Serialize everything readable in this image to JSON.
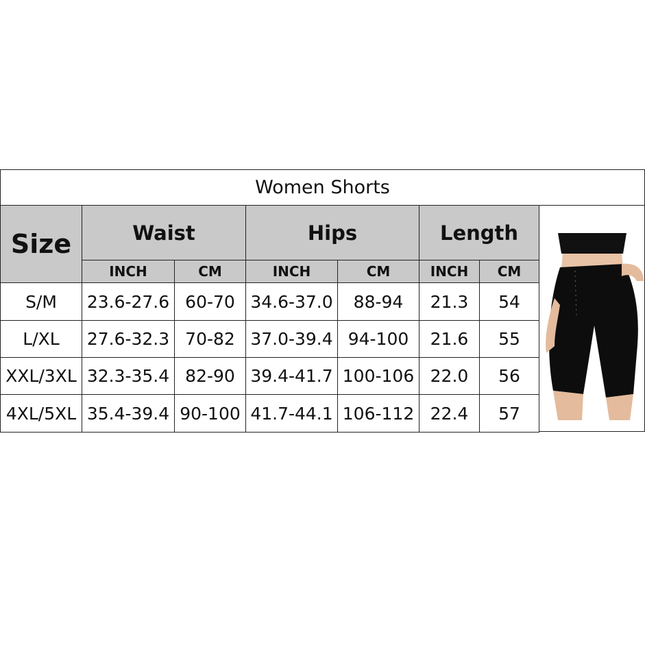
{
  "title": "Women Shorts",
  "headers": {
    "size": "Size",
    "waist": "Waist",
    "hips": "Hips",
    "length": "Length"
  },
  "units": [
    "INCH",
    "CM",
    "INCH",
    "CM",
    "INCH",
    "CM"
  ],
  "rows": [
    [
      "S/M",
      "23.6-27.6",
      "60-70",
      "34.6-37.0",
      "88-94",
      "21.3",
      "54"
    ],
    [
      "L/XL",
      "27.6-32.3",
      "70-82",
      "37.0-39.4",
      "94-100",
      "21.6",
      "55"
    ],
    [
      "XXL/3XL",
      "32.3-35.4",
      "82-90",
      "39.4-41.7",
      "100-106",
      "22.0",
      "56"
    ],
    [
      "4XL/5XL",
      "35.4-39.4",
      "90-100",
      "41.7-44.1",
      "106-112",
      "22.4",
      "57"
    ]
  ],
  "colors": {
    "header_bg": "#c9c9c9",
    "border": "#222222"
  }
}
